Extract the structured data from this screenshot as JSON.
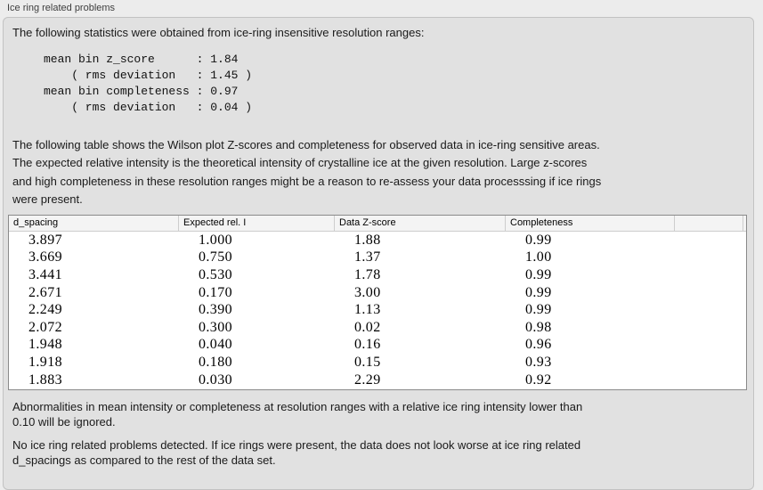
{
  "panel": {
    "title": "Ice ring related problems"
  },
  "intro": {
    "text": "The following statistics were obtained from ice-ring insensitive resolution ranges:"
  },
  "stats_block": {
    "lines": [
      "mean bin z_score      : 1.84",
      "    ( rms deviation   : 1.45 )",
      "mean bin completeness : 0.97",
      "    ( rms deviation   : 0.04 )"
    ]
  },
  "table_description": {
    "lines": [
      "The following table shows the Wilson plot Z-scores and completeness for observed data in ice-ring sensitive areas.",
      "The expected relative intensity is the theoretical intensity of crystalline ice at the given resolution. Large z-scores",
      "and high completeness in these resolution ranges might be a reason to re-assess your data processsing if ice rings",
      "were present."
    ]
  },
  "table": {
    "columns": [
      "d_spacing",
      "Expected rel. I",
      "Data Z-score",
      "Completeness"
    ],
    "rows": [
      [
        "3.897",
        "1.000",
        "1.88",
        "0.99"
      ],
      [
        "3.669",
        "0.750",
        "1.37",
        "1.00"
      ],
      [
        "3.441",
        "0.530",
        "1.78",
        "0.99"
      ],
      [
        "2.671",
        "0.170",
        "3.00",
        "0.99"
      ],
      [
        "2.249",
        "0.390",
        "1.13",
        "0.99"
      ],
      [
        "2.072",
        "0.300",
        "0.02",
        "0.98"
      ],
      [
        "1.948",
        "0.040",
        "0.16",
        "0.96"
      ],
      [
        "1.918",
        "0.180",
        "0.15",
        "0.93"
      ],
      [
        "1.883",
        "0.030",
        "2.29",
        "0.92"
      ]
    ]
  },
  "notes": {
    "ignore_note_lines": [
      "Abnormalities in mean intensity or completeness at resolution ranges with a relative ice ring intensity lower than",
      "0.10 will be ignored."
    ],
    "conclusion_lines": [
      "No ice ring related problems detected. If ice rings were present, the data does not look worse at ice ring related",
      "d_spacings as compared to the rest of the data set."
    ]
  },
  "colors": {
    "window_bg": "#ececec",
    "panel_bg": "#e1e1e1",
    "table_bg": "#ffffff",
    "table_header_bg": "#f4f4f4",
    "table_border": "#8a8a8a"
  }
}
